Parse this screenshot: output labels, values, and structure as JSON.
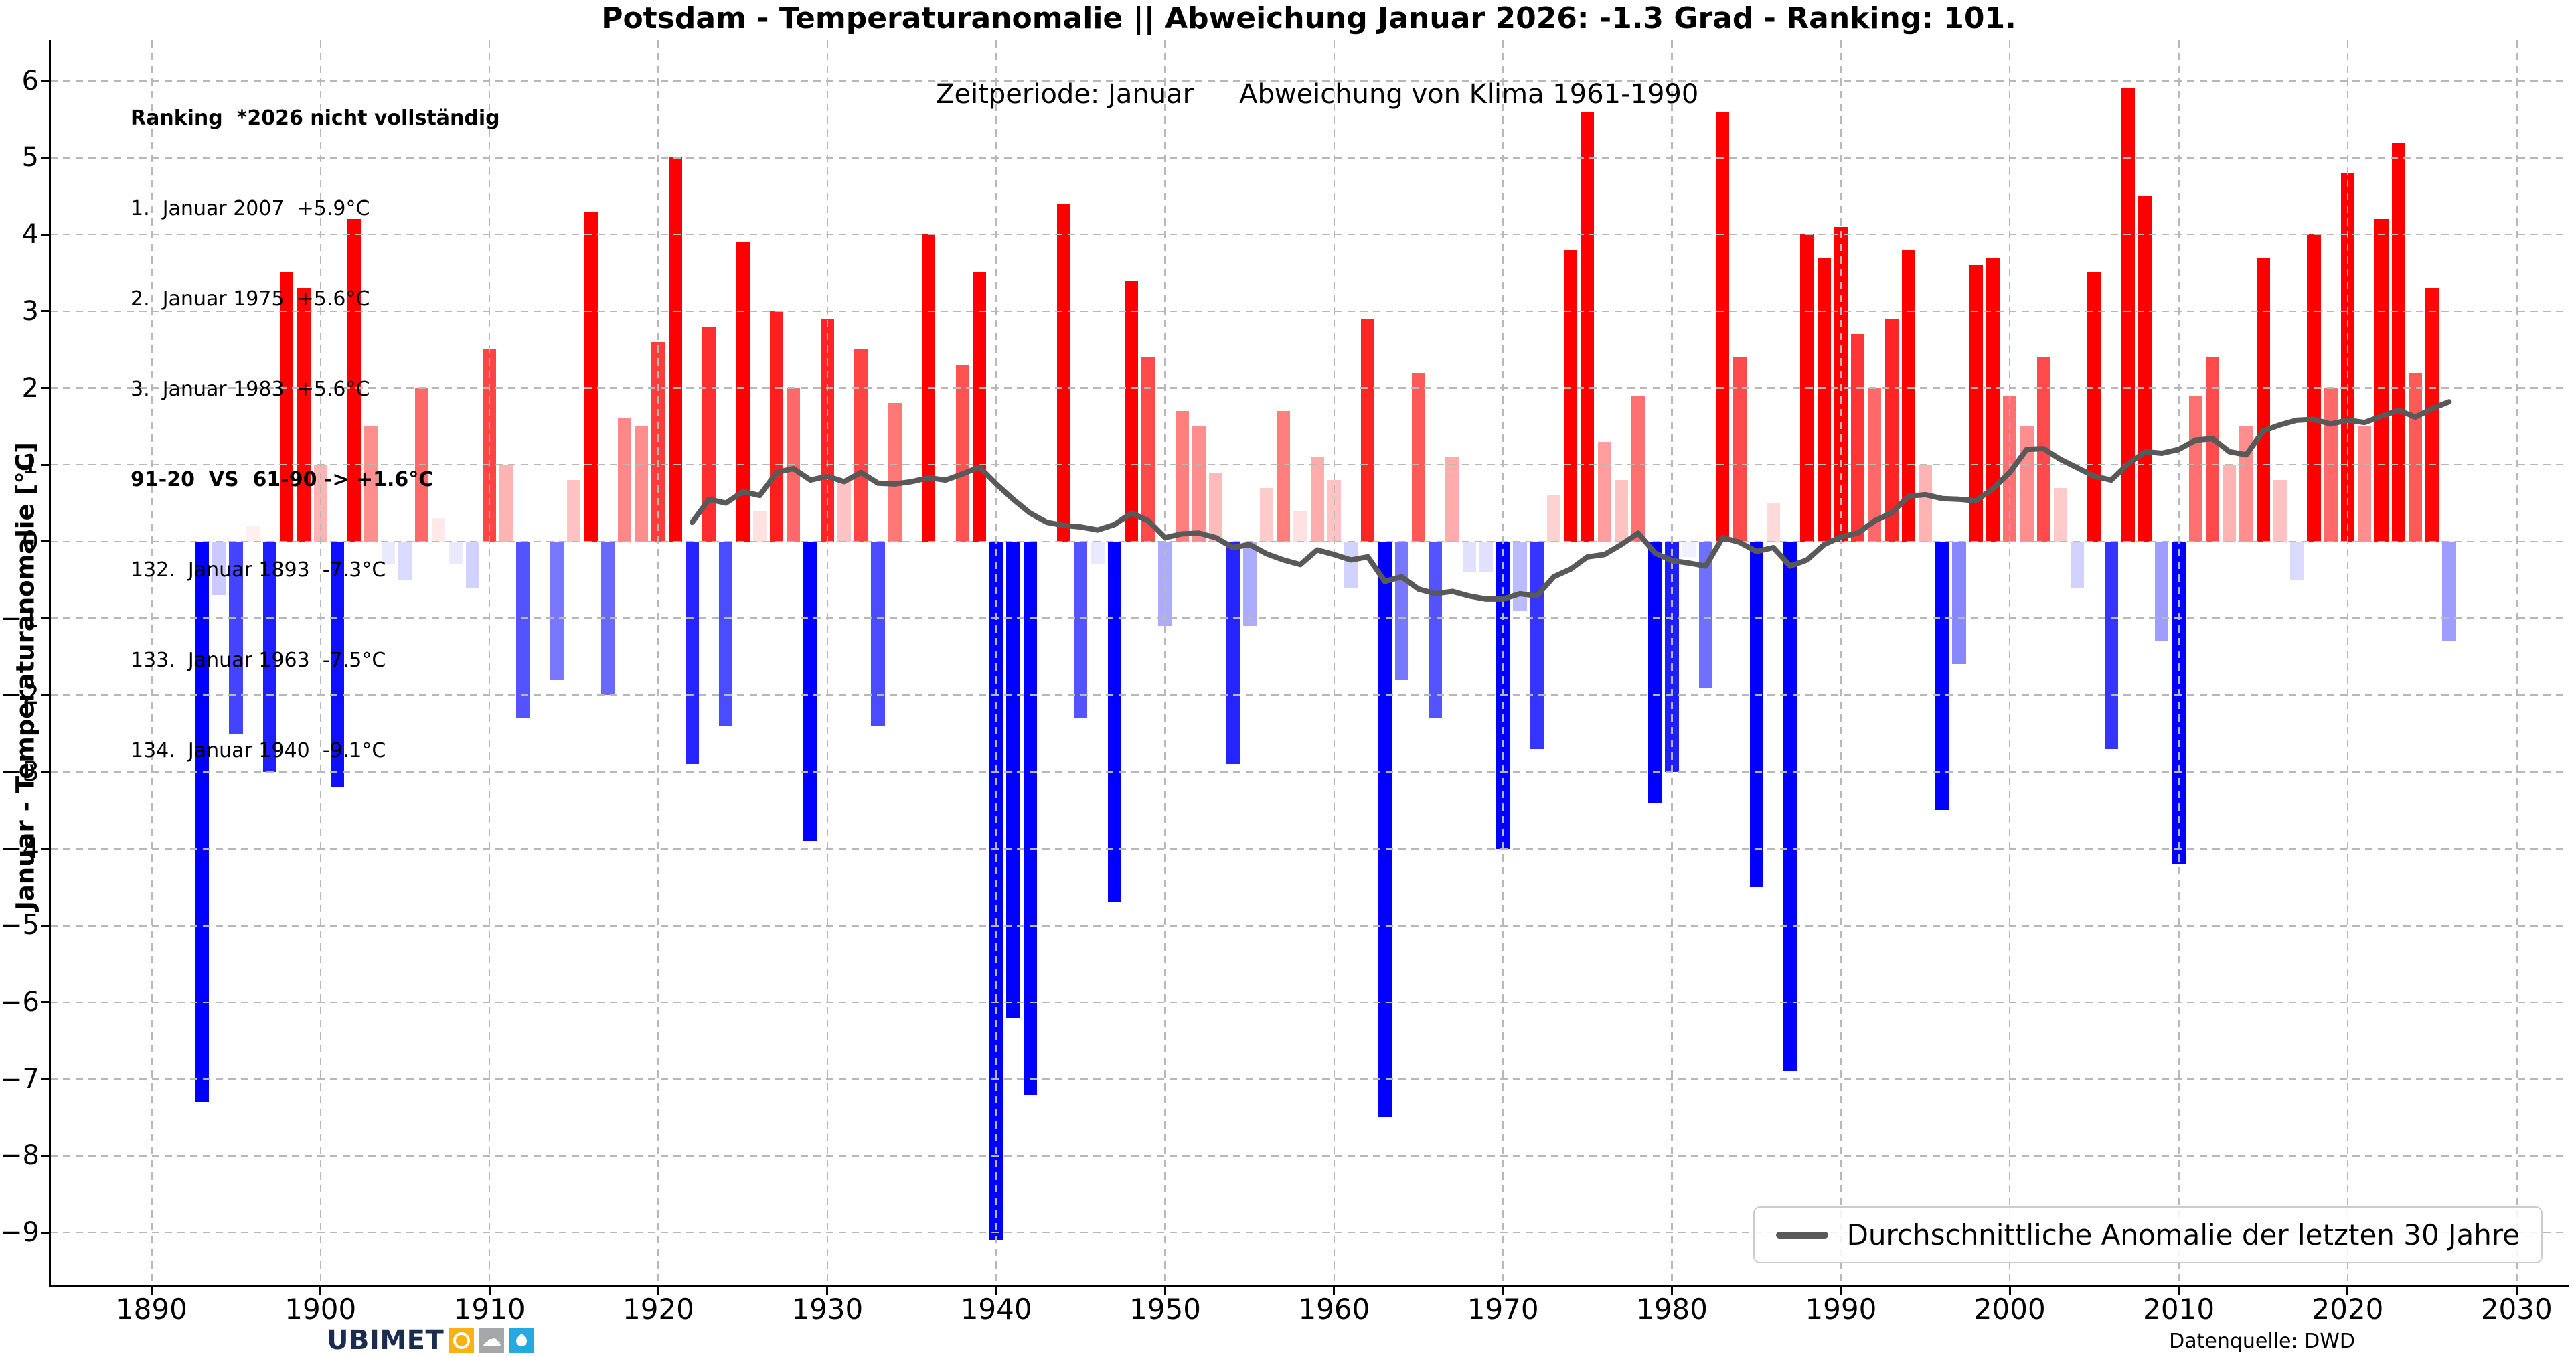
{
  "title": "Potsdam - Temperaturanomalie || Abweichung Januar 2026: -1.3 Grad - Ranking: 101.",
  "subtitle": {
    "left": "Zeitperiode: Januar",
    "right": "Abweichung von Klima 1961-1990"
  },
  "y_axis_label": "Januar - Temperaturanomalie [°C]",
  "ranking": {
    "lines": [
      "Ranking  *2026 nicht vollständig",
      "1.  Januar 2007  +5.9°C",
      "2.  Januar 1975  +5.6°C",
      "3.  Januar 1983  +5.6°C",
      "91-20  VS  61-90 -> +1.6°C",
      "132.  Januar 1893  -7.3°C",
      "133.  Januar 1963  -7.5°C",
      "134.  Januar 1940  -9.1°C"
    ]
  },
  "legend": {
    "label": "Durchschnittliche Anomalie der letzten 30 Jahre",
    "line_color": "#595959"
  },
  "source": "Datenquelle: DWD",
  "logo": {
    "text_left": "UBI",
    "text_right": "MET",
    "text_color": "#1b2d4f",
    "sun_color": "#f9b214",
    "cloud_color": "#a5a7aa",
    "drop_color": "#26a9e0",
    "cloud_glyph": "☁"
  },
  "chart_data": {
    "type": "bar",
    "title": "Potsdam - Temperaturanomalie || Abweichung Januar 2026: -1.3 Grad - Ranking: 101.",
    "xlabel": "",
    "ylabel": "Januar - Temperaturanomalie [°C]",
    "xlim": [
      1884,
      2033
    ],
    "ylim": [
      -9.68,
      6.53
    ],
    "x_ticks": [
      1890,
      1900,
      1910,
      1920,
      1930,
      1940,
      1950,
      1960,
      1970,
      1980,
      1990,
      2000,
      2010,
      2020,
      2030
    ],
    "y_ticks": [
      6,
      5,
      4,
      3,
      2,
      1,
      0,
      -1,
      -2,
      -3,
      -4,
      -5,
      -6,
      -7,
      -8,
      -9
    ],
    "grid": true,
    "legend_position": "lower right",
    "bar_color_positive": "#ff0000",
    "bar_color_negative": "#0000ff",
    "bar_alpha_full_at_abs": 3.4,
    "bars": {
      "start_year": 1893,
      "end_year": 2026,
      "values": [
        -7.3,
        -0.7,
        -2.5,
        0.2,
        -3.0,
        3.5,
        3.3,
        1.0,
        -3.2,
        4.2,
        1.5,
        -0.3,
        -0.5,
        2.0,
        0.3,
        -0.3,
        -0.6,
        2.5,
        1.0,
        -2.3,
        0.0,
        -1.8,
        0.8,
        4.3,
        -2.0,
        1.6,
        1.5,
        2.6,
        5.0,
        -2.9,
        2.8,
        -2.4,
        3.9,
        0.4,
        3.0,
        2.0,
        -3.9,
        2.9,
        0.8,
        2.5,
        -2.4,
        1.8,
        0.0,
        4.0,
        0.0,
        2.3,
        3.5,
        -9.1,
        -6.2,
        -7.2,
        0.0,
        4.4,
        -2.3,
        -0.3,
        -4.7,
        3.4,
        2.4,
        -1.1,
        1.7,
        1.5,
        0.9,
        -2.9,
        -1.1,
        0.7,
        1.7,
        0.4,
        1.1,
        0.8,
        -0.6,
        2.9,
        -7.5,
        -1.8,
        2.2,
        -2.3,
        1.1,
        -0.4,
        -0.4,
        -4.0,
        -0.9,
        -2.7,
        0.6,
        3.8,
        5.6,
        1.3,
        0.8,
        1.9,
        -3.4,
        -3.0,
        -0.2,
        -1.9,
        5.6,
        2.4,
        -4.5,
        0.5,
        -6.9,
        4.0,
        3.7,
        4.1,
        2.7,
        2.0,
        2.9,
        3.8,
        1.0,
        -3.5,
        -1.6,
        3.6,
        3.7,
        1.9,
        1.5,
        2.4,
        0.7,
        -0.6,
        3.5,
        -2.7,
        5.9,
        4.5,
        -1.3,
        -4.2,
        1.9,
        2.4,
        1.0,
        1.5,
        3.7,
        0.8,
        -0.5,
        4.0,
        2.0,
        4.8,
        1.5,
        4.2,
        5.2,
        2.2,
        3.3,
        -1.3
      ]
    },
    "mean_line": {
      "name": "Durchschnittliche Anomalie der letzten 30 Jahre",
      "start_year": 1922,
      "end_year": 2026,
      "values": [
        0.25,
        0.55,
        0.5,
        0.65,
        0.6,
        0.9,
        0.95,
        0.8,
        0.85,
        0.78,
        0.9,
        0.76,
        0.75,
        0.78,
        0.83,
        0.8,
        0.88,
        0.97,
        0.75,
        0.55,
        0.37,
        0.25,
        0.21,
        0.19,
        0.15,
        0.22,
        0.37,
        0.27,
        0.05,
        0.1,
        0.11,
        0.05,
        -0.08,
        -0.04,
        -0.16,
        -0.24,
        -0.3,
        -0.11,
        -0.17,
        -0.24,
        -0.2,
        -0.52,
        -0.46,
        -0.62,
        -0.68,
        -0.65,
        -0.71,
        -0.75,
        -0.75,
        -0.68,
        -0.71,
        -0.46,
        -0.36,
        -0.2,
        -0.17,
        -0.04,
        0.11,
        -0.15,
        -0.25,
        -0.28,
        -0.32,
        0.05,
        -0.01,
        -0.13,
        -0.08,
        -0.32,
        -0.24,
        -0.04,
        0.06,
        0.11,
        0.27,
        0.37,
        0.59,
        0.61,
        0.56,
        0.55,
        0.53,
        0.69,
        0.9,
        1.2,
        1.21,
        1.07,
        0.96,
        0.85,
        0.8,
        1.01,
        1.17,
        1.15,
        1.2,
        1.32,
        1.34,
        1.17,
        1.13,
        1.44,
        1.52,
        1.58,
        1.59,
        1.53,
        1.58,
        1.55,
        1.63,
        1.71,
        1.62,
        1.73,
        1.82
      ]
    }
  }
}
